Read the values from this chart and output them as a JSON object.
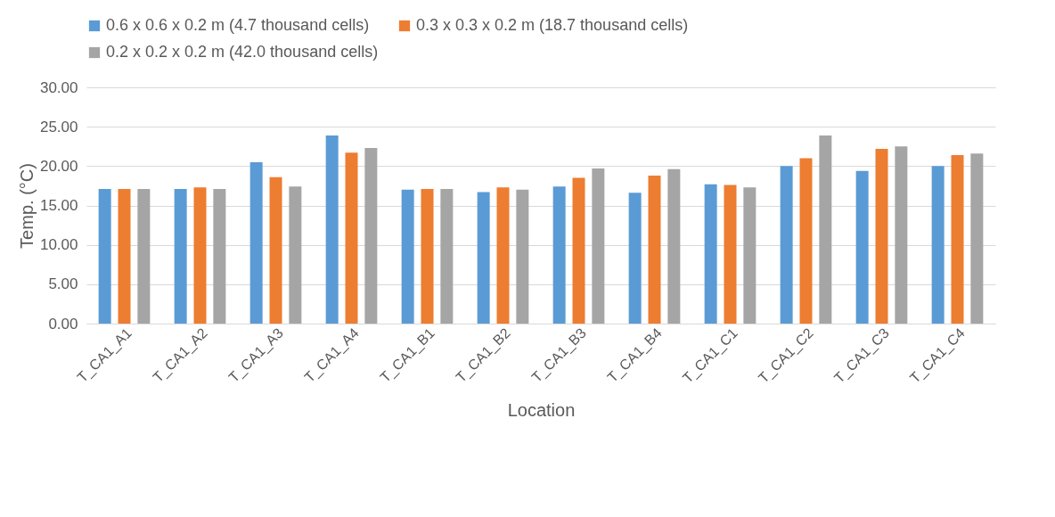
{
  "chart_data": {
    "type": "bar",
    "xlabel": "Location",
    "ylabel": "Temp. (°C)",
    "categories": [
      "T_CA1_A1",
      "T_CA1_A2",
      "T_CA1_A3",
      "T_CA1_A4",
      "T_CA1_B1",
      "T_CA1_B2",
      "T_CA1_B3",
      "T_CA1_B4",
      "T_CA1_C1",
      "T_CA1_C2",
      "T_CA1_C3",
      "T_CA1_C4"
    ],
    "series": [
      {
        "name": "0.6 x 0.6 x 0.2 m (4.7 thousand cells)",
        "color": "#5b9bd5",
        "values": [
          17.1,
          17.1,
          20.5,
          23.9,
          17.0,
          16.7,
          17.4,
          16.6,
          17.7,
          20.0,
          19.4,
          20.0
        ]
      },
      {
        "name": "0.3 x 0.3 x 0.2 m (18.7 thousand cells)",
        "color": "#ed7d31",
        "values": [
          17.1,
          17.3,
          18.6,
          21.7,
          17.1,
          17.3,
          18.5,
          18.8,
          17.6,
          21.0,
          22.2,
          21.4
        ]
      },
      {
        "name": "0.2 x 0.2 x 0.2 m (42.0 thousand cells)",
        "color": "#a5a5a5",
        "values": [
          17.1,
          17.1,
          17.4,
          22.3,
          17.1,
          17.0,
          19.7,
          19.6,
          17.3,
          23.9,
          22.5,
          21.6
        ]
      }
    ],
    "ylim": [
      0,
      30
    ],
    "yticks": [
      {
        "value": 0,
        "label": "0.00"
      },
      {
        "value": 5,
        "label": "5.00"
      },
      {
        "value": 10,
        "label": "10.00"
      },
      {
        "value": 15,
        "label": "15.00"
      },
      {
        "value": 20,
        "label": "20.00"
      },
      {
        "value": 25,
        "label": "25.00"
      },
      {
        "value": 30,
        "label": "30.00"
      }
    ],
    "grid": "y",
    "legend": "top"
  }
}
